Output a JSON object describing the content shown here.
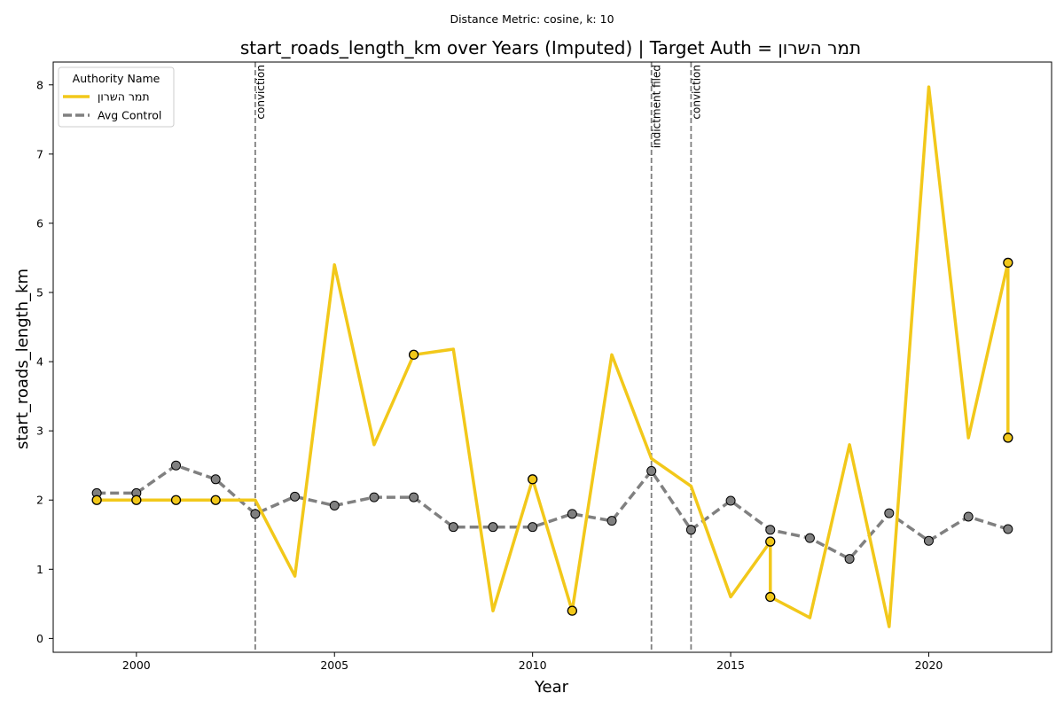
{
  "chart_data": {
    "type": "line",
    "suptitle": "Distance Metric: cosine, k: 10",
    "title": "start_roads_length_km over Years (Imputed) | Target Auth = תמר השרון",
    "xlabel": "Year",
    "ylabel": "start_roads_length_km",
    "xlim": [
      1997.9,
      2023.1
    ],
    "ylim": [
      -0.2,
      8.33
    ],
    "x_ticks": [
      2000,
      2005,
      2010,
      2015,
      2020
    ],
    "y_ticks": [
      0,
      1,
      2,
      3,
      4,
      5,
      6,
      7,
      8
    ],
    "grid": false,
    "legend": {
      "title": "Authority Name",
      "placement": "upper left",
      "entries": [
        "תמר השרון",
        "Avg Control"
      ]
    },
    "series": [
      {
        "name": "תמר השרון",
        "color": "#f2c81a",
        "style": "solid",
        "points": [
          [
            1999,
            2.0
          ],
          [
            2000,
            2.0
          ],
          [
            2001,
            2.0
          ],
          [
            2002,
            2.0
          ],
          [
            2003,
            2.0
          ],
          [
            2004,
            0.9
          ],
          [
            2005,
            5.4
          ],
          [
            2006,
            2.8
          ],
          [
            2007,
            4.1
          ],
          [
            2008,
            4.18
          ],
          [
            2009,
            0.4
          ],
          [
            2010,
            2.3
          ],
          [
            2011,
            0.4
          ],
          [
            2012,
            4.1
          ],
          [
            2013,
            2.6
          ],
          [
            2014,
            2.2
          ],
          [
            2015,
            0.6
          ],
          [
            2016,
            1.4
          ],
          [
            2016,
            0.6
          ],
          [
            2017,
            0.3
          ],
          [
            2018,
            2.8
          ],
          [
            2019,
            0.17
          ],
          [
            2020,
            7.97
          ],
          [
            2021,
            2.9
          ],
          [
            2022,
            5.43
          ],
          [
            2022,
            2.9
          ]
        ],
        "markers": [
          [
            1999,
            2.0
          ],
          [
            2000,
            2.0
          ],
          [
            2001,
            2.0
          ],
          [
            2002,
            2.0
          ],
          [
            2007,
            4.1
          ],
          [
            2010,
            2.3
          ],
          [
            2011,
            0.4
          ],
          [
            2016,
            1.4
          ],
          [
            2016,
            0.6
          ],
          [
            2022,
            5.43
          ],
          [
            2022,
            2.9
          ]
        ]
      },
      {
        "name": "Avg Control",
        "color": "#808080",
        "style": "dashed",
        "points": [
          [
            1999,
            2.1
          ],
          [
            2000,
            2.1
          ],
          [
            2001,
            2.5
          ],
          [
            2002,
            2.3
          ],
          [
            2003,
            1.8
          ],
          [
            2004,
            2.05
          ],
          [
            2005,
            1.92
          ],
          [
            2006,
            2.04
          ],
          [
            2007,
            2.04
          ],
          [
            2008,
            1.61
          ],
          [
            2009,
            1.61
          ],
          [
            2010,
            1.61
          ],
          [
            2011,
            1.8
          ],
          [
            2012,
            1.7
          ],
          [
            2013,
            2.42
          ],
          [
            2014,
            1.57
          ],
          [
            2015,
            1.99
          ],
          [
            2016,
            1.57
          ],
          [
            2017,
            1.45
          ],
          [
            2018,
            1.15
          ],
          [
            2019,
            1.81
          ],
          [
            2020,
            1.41
          ],
          [
            2021,
            1.76
          ],
          [
            2022,
            1.58
          ]
        ],
        "markers": [
          [
            1999,
            2.1
          ],
          [
            2000,
            2.1
          ],
          [
            2001,
            2.5
          ],
          [
            2002,
            2.3
          ],
          [
            2003,
            1.8
          ],
          [
            2004,
            2.05
          ],
          [
            2005,
            1.92
          ],
          [
            2006,
            2.04
          ],
          [
            2007,
            2.04
          ],
          [
            2008,
            1.61
          ],
          [
            2009,
            1.61
          ],
          [
            2010,
            1.61
          ],
          [
            2011,
            1.8
          ],
          [
            2012,
            1.7
          ],
          [
            2013,
            2.42
          ],
          [
            2014,
            1.57
          ],
          [
            2015,
            1.99
          ],
          [
            2016,
            1.57
          ],
          [
            2017,
            1.45
          ],
          [
            2018,
            1.15
          ],
          [
            2019,
            1.81
          ],
          [
            2020,
            1.41
          ],
          [
            2021,
            1.76
          ],
          [
            2022,
            1.58
          ]
        ]
      }
    ],
    "vlines": [
      {
        "x": 2003,
        "label": "conviction"
      },
      {
        "x": 2013,
        "label": "indictment filed"
      },
      {
        "x": 2014,
        "label": "conviction"
      }
    ]
  }
}
